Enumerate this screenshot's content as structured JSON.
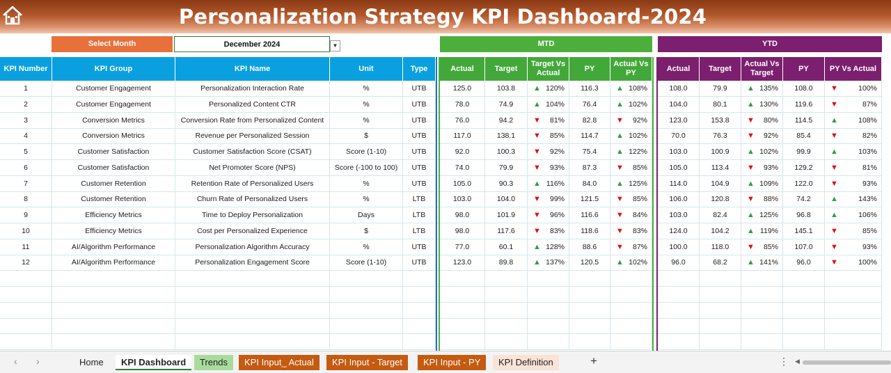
{
  "title": "Personalization Strategy KPI Dashboard-2024",
  "selector": {
    "label": "Select Month",
    "value": "December 2024"
  },
  "sections": {
    "mtd": "MTD",
    "ytd": "YTD"
  },
  "headers": {
    "kpi_number": "KPI Number",
    "kpi_group": "KPI Group",
    "kpi_name": "KPI Name",
    "unit": "Unit",
    "type": "Type",
    "mtd_actual": "Actual",
    "mtd_target": "Target",
    "mtd_tvsa": "Target Vs Actual",
    "mtd_py": "PY",
    "mtd_avspy": "Actual Vs PY",
    "ytd_actual": "Actual",
    "ytd_target": "Target",
    "ytd_avst": "Actual Vs Target",
    "ytd_py": "PY",
    "ytd_pyvsa": "PY Vs Actual"
  },
  "colors": {
    "up": "#2ea043",
    "down": "#e01010",
    "mtd": "#4caf3b",
    "ytd": "#7b1f6e",
    "header": "#0aa0e0"
  },
  "rows": [
    {
      "num": "1",
      "group": "Customer Engagement",
      "name": "Personalization Interaction Rate",
      "unit": "%",
      "type": "UTB",
      "m_actual": "125.0",
      "m_target": "103.8",
      "m_tva": "120%",
      "m_tva_dir": "up",
      "m_py": "116.3",
      "m_avp": "108%",
      "m_avp_dir": "up",
      "y_actual": "108.0",
      "y_target": "79.9",
      "y_avt": "135%",
      "y_avt_dir": "up",
      "y_py": "108.0",
      "y_pva": "100%",
      "y_pva_dir": "down"
    },
    {
      "num": "2",
      "group": "Customer Engagement",
      "name": "Personalized Content CTR",
      "unit": "%",
      "type": "UTB",
      "m_actual": "78.0",
      "m_target": "74.9",
      "m_tva": "104%",
      "m_tva_dir": "up",
      "m_py": "76.4",
      "m_avp": "102%",
      "m_avp_dir": "up",
      "y_actual": "104.0",
      "y_target": "80.1",
      "y_avt": "130%",
      "y_avt_dir": "up",
      "y_py": "119.6",
      "y_pva": "87%",
      "y_pva_dir": "down"
    },
    {
      "num": "3",
      "group": "Conversion Metrics",
      "name": "Conversion Rate from Personalized Content",
      "unit": "%",
      "type": "UTB",
      "m_actual": "76.0",
      "m_target": "94.2",
      "m_tva": "81%",
      "m_tva_dir": "down",
      "m_py": "82.8",
      "m_avp": "92%",
      "m_avp_dir": "down",
      "y_actual": "123.0",
      "y_target": "153.8",
      "y_avt": "80%",
      "y_avt_dir": "down",
      "y_py": "114.5",
      "y_pva": "108%",
      "y_pva_dir": "up"
    },
    {
      "num": "4",
      "group": "Conversion Metrics",
      "name": "Revenue per Personalized Session",
      "unit": "$",
      "type": "UTB",
      "m_actual": "117.0",
      "m_target": "138.1",
      "m_tva": "85%",
      "m_tva_dir": "down",
      "m_py": "114.7",
      "m_avp": "102%",
      "m_avp_dir": "up",
      "y_actual": "70.0",
      "y_target": "76.3",
      "y_avt": "92%",
      "y_avt_dir": "down",
      "y_py": "85.4",
      "y_pva": "82%",
      "y_pva_dir": "down"
    },
    {
      "num": "5",
      "group": "Customer Satisfaction",
      "name": "Customer Satisfaction Score (CSAT)",
      "unit": "Score (1-10)",
      "type": "UTB",
      "m_actual": "92.0",
      "m_target": "100.3",
      "m_tva": "92%",
      "m_tva_dir": "down",
      "m_py": "75.4",
      "m_avp": "122%",
      "m_avp_dir": "up",
      "y_actual": "103.0",
      "y_target": "100.9",
      "y_avt": "102%",
      "y_avt_dir": "up",
      "y_py": "99.9",
      "y_pva": "103%",
      "y_pva_dir": "up"
    },
    {
      "num": "6",
      "group": "Customer Satisfaction",
      "name": "Net Promoter Score (NPS)",
      "unit": "Score (-100 to 100)",
      "type": "UTB",
      "m_actual": "74.0",
      "m_target": "79.9",
      "m_tva": "93%",
      "m_tva_dir": "down",
      "m_py": "87.3",
      "m_avp": "85%",
      "m_avp_dir": "down",
      "y_actual": "105.0",
      "y_target": "113.4",
      "y_avt": "93%",
      "y_avt_dir": "down",
      "y_py": "129.2",
      "y_pva": "81%",
      "y_pva_dir": "down"
    },
    {
      "num": "7",
      "group": "Customer Retention",
      "name": "Retention Rate of Personalized Users",
      "unit": "%",
      "type": "UTB",
      "m_actual": "105.0",
      "m_target": "90.3",
      "m_tva": "116%",
      "m_tva_dir": "up",
      "m_py": "84.0",
      "m_avp": "125%",
      "m_avp_dir": "up",
      "y_actual": "114.0",
      "y_target": "104.9",
      "y_avt": "109%",
      "y_avt_dir": "up",
      "y_py": "122.0",
      "y_pva": "93%",
      "y_pva_dir": "down"
    },
    {
      "num": "8",
      "group": "Customer Retention",
      "name": "Churn Rate of Personalized Users",
      "unit": "%",
      "type": "LTB",
      "m_actual": "103.0",
      "m_target": "104.0",
      "m_tva": "99%",
      "m_tva_dir": "down",
      "m_py": "121.5",
      "m_avp": "85%",
      "m_avp_dir": "down",
      "y_actual": "106.0",
      "y_target": "120.8",
      "y_avt": "88%",
      "y_avt_dir": "down",
      "y_py": "74.2",
      "y_pva": "143%",
      "y_pva_dir": "up"
    },
    {
      "num": "9",
      "group": "Efficiency Metrics",
      "name": "Time to Deploy Personalization",
      "unit": "Days",
      "type": "LTB",
      "m_actual": "98.0",
      "m_target": "101.9",
      "m_tva": "96%",
      "m_tva_dir": "down",
      "m_py": "116.6",
      "m_avp": "84%",
      "m_avp_dir": "down",
      "y_actual": "103.0",
      "y_target": "82.4",
      "y_avt": "125%",
      "y_avt_dir": "up",
      "y_py": "96.8",
      "y_pva": "106%",
      "y_pva_dir": "up"
    },
    {
      "num": "10",
      "group": "Efficiency Metrics",
      "name": "Cost per Personalized Experience",
      "unit": "$",
      "type": "LTB",
      "m_actual": "98.0",
      "m_target": "117.6",
      "m_tva": "83%",
      "m_tva_dir": "down",
      "m_py": "118.6",
      "m_avp": "83%",
      "m_avp_dir": "down",
      "y_actual": "124.0",
      "y_target": "104.2",
      "y_avt": "119%",
      "y_avt_dir": "up",
      "y_py": "145.1",
      "y_pva": "85%",
      "y_pva_dir": "down"
    },
    {
      "num": "11",
      "group": "AI/Algorithm Performance",
      "name": "Personalization Algorithm Accuracy",
      "unit": "%",
      "type": "UTB",
      "m_actual": "77.0",
      "m_target": "60.1",
      "m_tva": "128%",
      "m_tva_dir": "up",
      "m_py": "88.6",
      "m_avp": "87%",
      "m_avp_dir": "down",
      "y_actual": "100.0",
      "y_target": "118.0",
      "y_avt": "85%",
      "y_avt_dir": "down",
      "y_py": "107.0",
      "y_pva": "93%",
      "y_pva_dir": "down"
    },
    {
      "num": "12",
      "group": "AI/Algorithm Performance",
      "name": "Personalization Engagement Score",
      "unit": "Score (1-10)",
      "type": "UTB",
      "m_actual": "123.0",
      "m_target": "89.8",
      "m_tva": "137%",
      "m_tva_dir": "up",
      "m_py": "120.5",
      "m_avp": "102%",
      "m_avp_dir": "up",
      "y_actual": "96.0",
      "y_target": "68.2",
      "y_avt": "141%",
      "y_avt_dir": "up",
      "y_py": "96.0",
      "y_pva": "100%",
      "y_pva_dir": "down"
    }
  ],
  "empty_rows": 5,
  "sheet_tabs": [
    {
      "label": "Home",
      "style": "plain"
    },
    {
      "label": "KPI Dashboard",
      "style": "active"
    },
    {
      "label": "Trends",
      "style": "green"
    },
    {
      "label": "KPI Input_ Actual",
      "style": "orange"
    },
    {
      "label": "KPI Input - Target",
      "style": "orange"
    },
    {
      "label": "KPI Input - PY",
      "style": "orange"
    },
    {
      "label": "KPI Definition",
      "style": "peach"
    }
  ],
  "icons": {
    "home": "home-icon",
    "prev": "chevron-left-icon",
    "next": "chevron-right-icon",
    "add": "plus-icon",
    "more": "more-vertical-icon"
  }
}
